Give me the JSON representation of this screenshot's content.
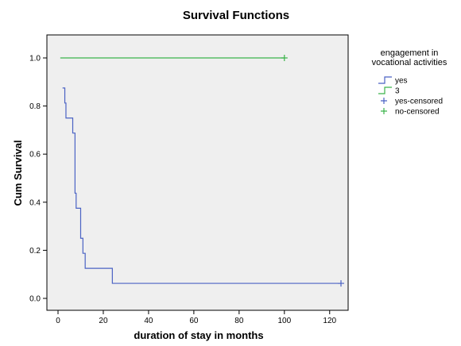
{
  "chart_data": {
    "type": "line",
    "title": "Survival Functions",
    "xlabel": "duration of stay in months",
    "ylabel": "Cum Survival",
    "xlim": [
      0,
      130
    ],
    "ylim": [
      0.0,
      1.0
    ],
    "xticks": [
      "0",
      "20",
      "40",
      "60",
      "80",
      "100",
      "120"
    ],
    "yticks": [
      "0.0",
      "0.2",
      "0.4",
      "0.6",
      "0.8",
      "1.0"
    ],
    "legend": {
      "title_lines": [
        "engagement in",
        "vocational activities"
      ],
      "placement": "right",
      "entries": [
        {
          "label": "yes",
          "symbol": "step",
          "color": "#4a62c4"
        },
        {
          "label": "3",
          "symbol": "step",
          "color": "#3bb34a"
        },
        {
          "label": "yes-censored",
          "symbol": "plus",
          "color": "#4a62c4"
        },
        {
          "label": "no-censored",
          "symbol": "plus",
          "color": "#3bb34a"
        }
      ]
    },
    "series": [
      {
        "name": "yes",
        "color": "#4a62c4",
        "steps": [
          [
            2,
            0.875
          ],
          [
            3,
            0.8125
          ],
          [
            3.5,
            0.75
          ],
          [
            6.5,
            0.6875
          ],
          [
            7.5,
            0.4375
          ],
          [
            8,
            0.375
          ],
          [
            10,
            0.25
          ],
          [
            11,
            0.1875
          ],
          [
            12,
            0.125
          ],
          [
            24,
            0.0625
          ],
          [
            125,
            0.0625
          ]
        ],
        "censored": [
          [
            125,
            0.0625
          ]
        ]
      },
      {
        "name": "3",
        "color": "#3bb34a",
        "steps": [
          [
            1,
            1.0
          ],
          [
            100,
            1.0
          ]
        ],
        "censored": [
          [
            100,
            1.0
          ]
        ]
      }
    ],
    "plot_background": "#efefef",
    "grid": false
  }
}
